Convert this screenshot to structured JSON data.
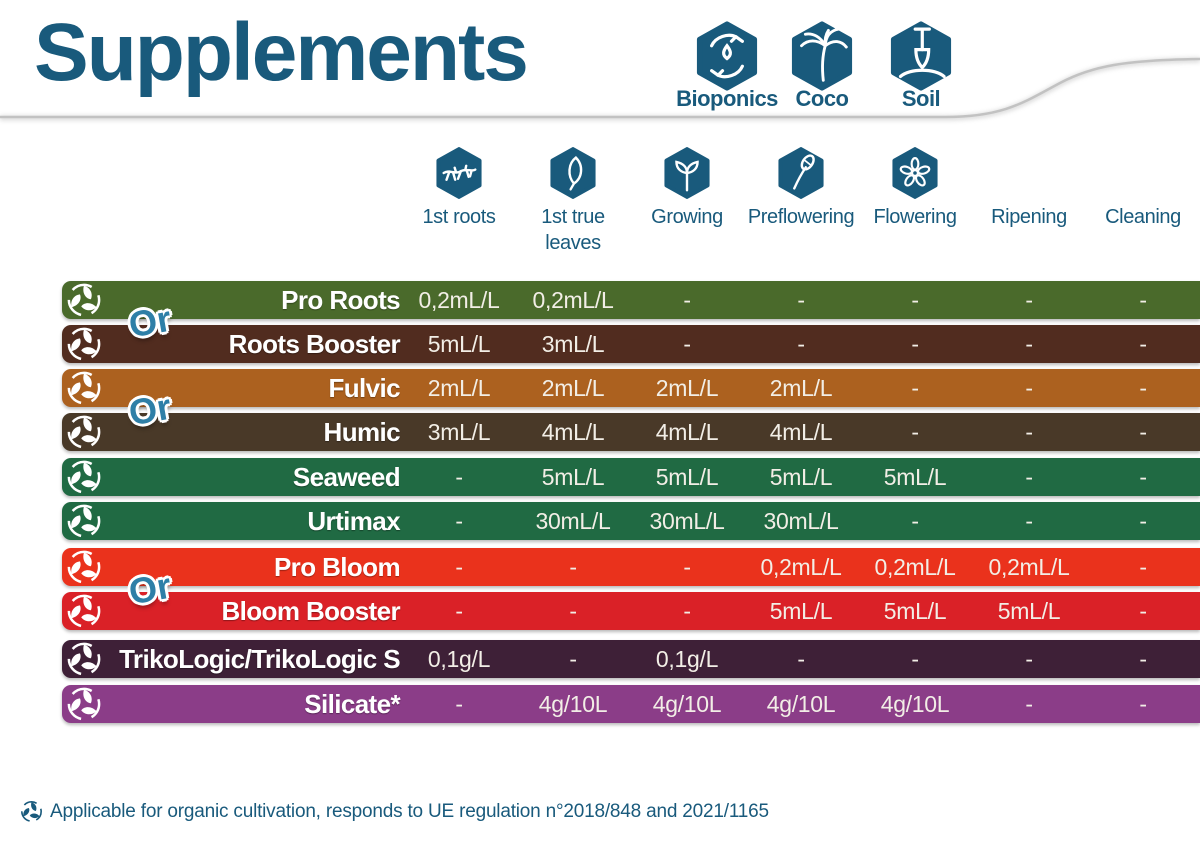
{
  "title": "Supplements",
  "accent_color": "#195a7c",
  "or_label": "Or",
  "media_types": [
    {
      "label": "Bioponics",
      "icon": "bioponics-hands-icon"
    },
    {
      "label": "Coco",
      "icon": "coco-palm-icon"
    },
    {
      "label": "Soil",
      "icon": "soil-shovel-icon"
    }
  ],
  "footnote": "Applicable for organic cultivation, responds to UE regulation n°2018/848 and 2021/1165",
  "chart_data": {
    "type": "table",
    "title": "Supplements",
    "columns": [
      "1st roots",
      "1st true leaves",
      "Growing",
      "Preflowering",
      "Flowering",
      "Ripening",
      "Cleaning"
    ],
    "column_icons": [
      "roots-icon",
      "true-leaves-icon",
      "growing-icon",
      "preflowering-icon",
      "flowering-icon",
      null,
      null
    ],
    "rows": [
      {
        "name": "Pro Roots",
        "color": "#4a6a2b",
        "or_with_next": true,
        "values": [
          "0,2mL/L",
          "0,2mL/L",
          "-",
          "-",
          "-",
          "-",
          "-"
        ]
      },
      {
        "name": "Roots Booster",
        "color": "#512c1f",
        "or_with_next": false,
        "values": [
          "5mL/L",
          "3mL/L",
          "-",
          "-",
          "-",
          "-",
          "-"
        ]
      },
      {
        "name": "Fulvic",
        "color": "#ac611f",
        "or_with_next": true,
        "values": [
          "2mL/L",
          "2mL/L",
          "2mL/L",
          "2mL/L",
          "-",
          "-",
          "-"
        ]
      },
      {
        "name": "Humic",
        "color": "#493928",
        "or_with_next": false,
        "values": [
          "3mL/L",
          "4mL/L",
          "4mL/L",
          "4mL/L",
          "-",
          "-",
          "-"
        ]
      },
      {
        "name": "Seaweed",
        "color": "#206a43",
        "or_with_next": false,
        "values": [
          "-",
          "5mL/L",
          "5mL/L",
          "5mL/L",
          "5mL/L",
          "-",
          "-"
        ]
      },
      {
        "name": "Urtimax",
        "color": "#206a43",
        "or_with_next": false,
        "values": [
          "-",
          "30mL/L",
          "30mL/L",
          "30mL/L",
          "-",
          "-",
          "-"
        ]
      },
      {
        "name": "Pro Bloom",
        "color": "#ea321c",
        "or_with_next": true,
        "values": [
          "-",
          "-",
          "-",
          "0,2mL/L",
          "0,2mL/L",
          "0,2mL/L",
          "-"
        ]
      },
      {
        "name": "Bloom Booster",
        "color": "#da2127",
        "or_with_next": false,
        "values": [
          "-",
          "-",
          "-",
          "5mL/L",
          "5mL/L",
          "5mL/L",
          "-"
        ]
      },
      {
        "name": "TrikoLogic/TrikoLogic S",
        "color": "#3e2037",
        "or_with_next": false,
        "values": [
          "0,1g/L",
          "-",
          "0,1g/L",
          "-",
          "-",
          "-",
          "-"
        ]
      },
      {
        "name": "Silicate*",
        "color": "#8b3d88",
        "or_with_next": false,
        "values": [
          "-",
          "4g/10L",
          "4g/10L",
          "4g/10L",
          "4g/10L",
          "-",
          "-"
        ]
      }
    ]
  }
}
